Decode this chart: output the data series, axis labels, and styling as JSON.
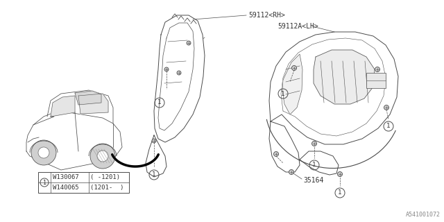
{
  "bg_color": "#ffffff",
  "fig_width": 6.4,
  "fig_height": 3.2,
  "dpi": 100,
  "watermark": "A541001072",
  "label_59112_rh": "59112<RH>",
  "label_59112a_lh": "59112A<LH>",
  "label_35164": "35164",
  "table_row1_part": "W130067",
  "table_row1_date": "( -1201)",
  "table_row2_part": "W140065",
  "table_row2_date": "(1201-  )",
  "callout_num": "1",
  "line_color": "#4a4a4a",
  "text_color": "#333333",
  "font_size_labels": 7.0,
  "font_size_table": 6.5,
  "font_size_watermark": 6.0
}
